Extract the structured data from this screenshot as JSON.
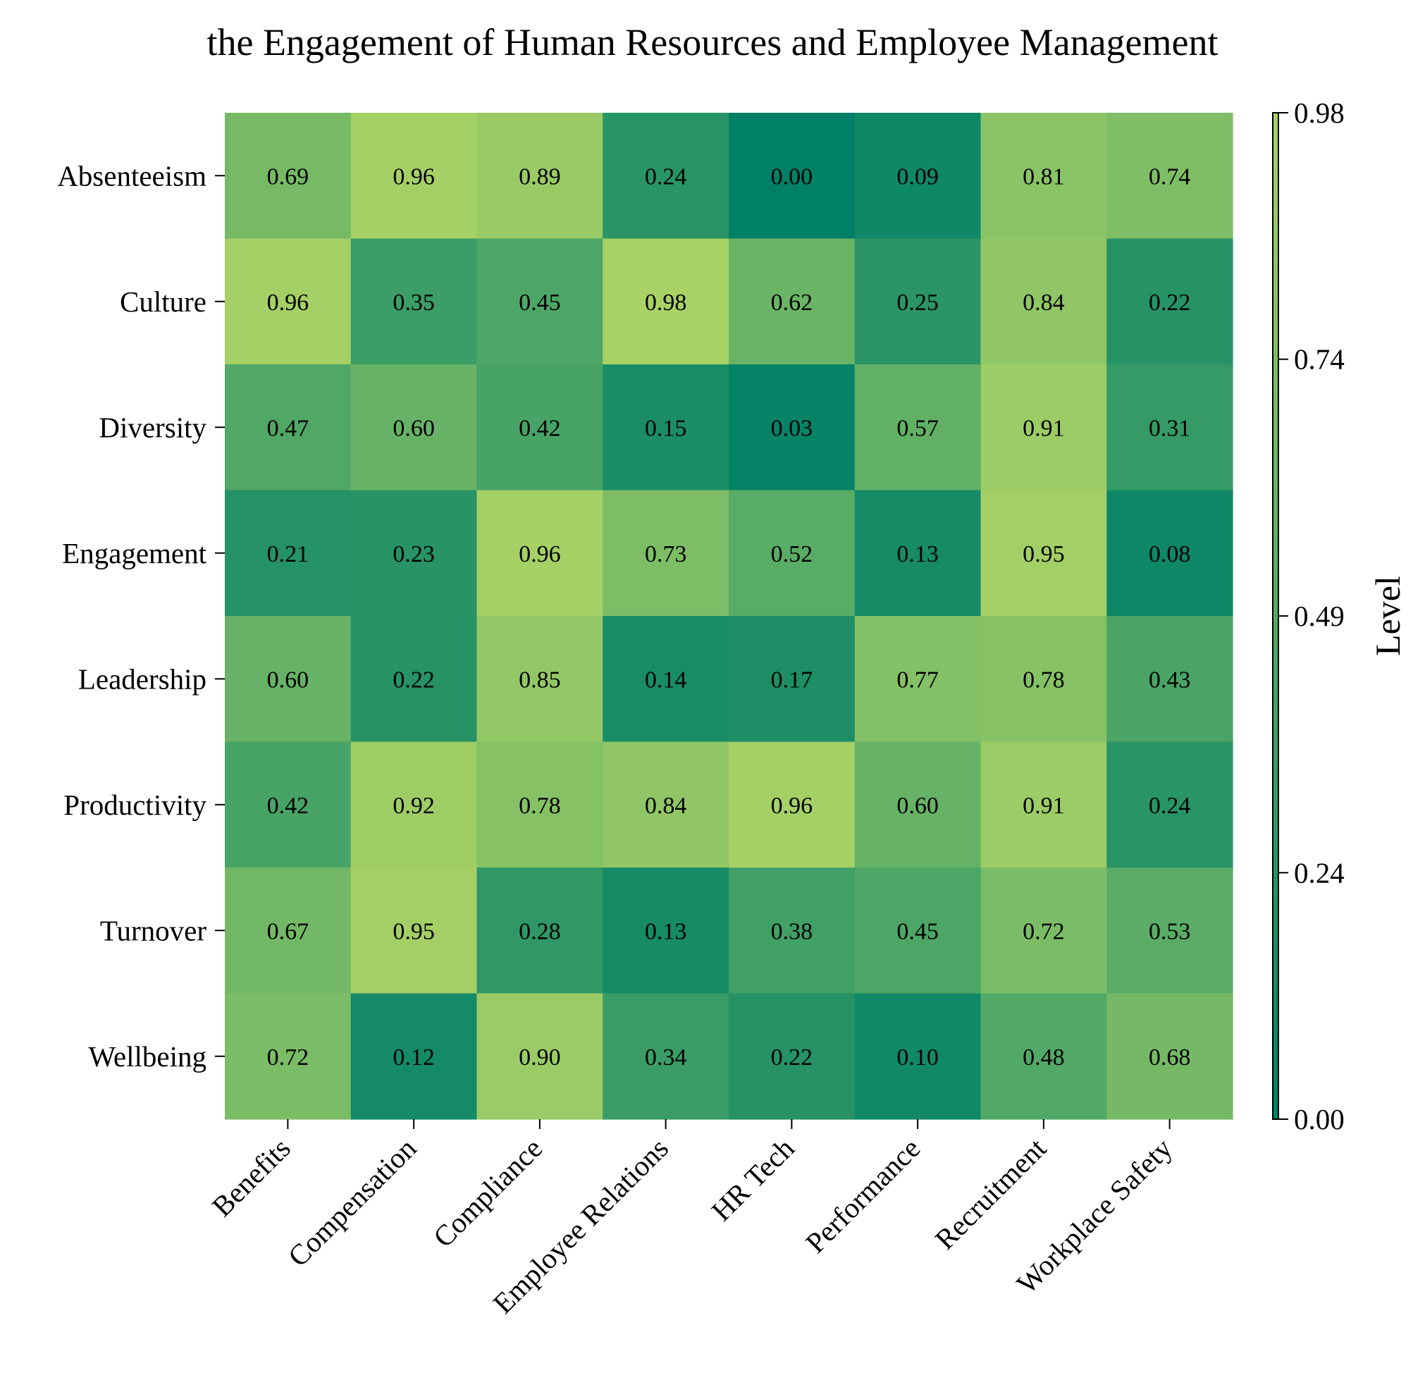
{
  "chart_data": {
    "type": "heatmap",
    "title": "the Engagement of Human Resources and Employee Management",
    "x_categories": [
      "Benefits",
      "Compensation",
      "Compliance",
      "Employee Relations",
      "HR Tech",
      "Performance",
      "Recruitment",
      "Workplace Safety"
    ],
    "y_categories": [
      "Absenteeism",
      "Culture",
      "Diversity",
      "Engagement",
      "Leadership",
      "Productivity",
      "Turnover",
      "Wellbeing"
    ],
    "values": [
      [
        0.69,
        0.96,
        0.89,
        0.24,
        0.0,
        0.09,
        0.81,
        0.74
      ],
      [
        0.96,
        0.35,
        0.45,
        0.98,
        0.62,
        0.25,
        0.84,
        0.22
      ],
      [
        0.47,
        0.6,
        0.42,
        0.15,
        0.03,
        0.57,
        0.91,
        0.31
      ],
      [
        0.21,
        0.23,
        0.96,
        0.73,
        0.52,
        0.13,
        0.95,
        0.08
      ],
      [
        0.6,
        0.22,
        0.85,
        0.14,
        0.17,
        0.77,
        0.78,
        0.43
      ],
      [
        0.42,
        0.92,
        0.78,
        0.84,
        0.96,
        0.6,
        0.91,
        0.24
      ],
      [
        0.67,
        0.95,
        0.28,
        0.13,
        0.38,
        0.45,
        0.72,
        0.53
      ],
      [
        0.72,
        0.12,
        0.9,
        0.34,
        0.22,
        0.1,
        0.48,
        0.68
      ]
    ],
    "colorbar": {
      "label": "Level",
      "range": [
        0.0,
        0.98
      ],
      "ticks": [
        "0.00",
        "0.24",
        "0.49",
        "0.74",
        "0.98"
      ],
      "colormap": [
        "#008066",
        "#a8d266"
      ]
    },
    "legend": "colorbar-right",
    "grid": false
  }
}
